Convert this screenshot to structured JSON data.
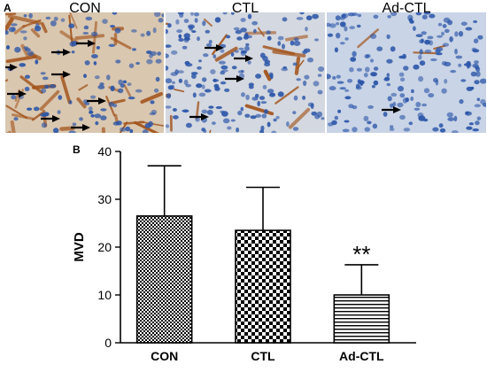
{
  "panel_a": {
    "letter": "A",
    "images": [
      {
        "label": "CON",
        "stain": "heavy"
      },
      {
        "label": "CTL",
        "stain": "moderate"
      },
      {
        "label": "Ad-CTL",
        "stain": "light"
      }
    ]
  },
  "panel_b": {
    "letter": "B"
  },
  "colors": {
    "nuclei": "#2a55a8",
    "stain_brown": "#a3541c",
    "tissue_bg_heavy": "#d9c7b0",
    "tissue_bg_light": "#c9d4e6",
    "bar_stroke": "#000000"
  },
  "chart_data": {
    "type": "bar",
    "categories": [
      "CON",
      "CTL",
      "Ad-CTL"
    ],
    "values": [
      26.5,
      23.5,
      10.0
    ],
    "error_upper": [
      37.0,
      32.5,
      16.3
    ],
    "patterns": [
      "checker-fine",
      "checker-coarse",
      "horizontal-lines"
    ],
    "annotations": [
      {
        "category": "Ad-CTL",
        "text": "**"
      }
    ],
    "ylabel": "MVD",
    "xlabel": "",
    "ylim": [
      0,
      40
    ],
    "yticks": [
      0,
      10,
      20,
      30,
      40
    ],
    "grid": false
  }
}
